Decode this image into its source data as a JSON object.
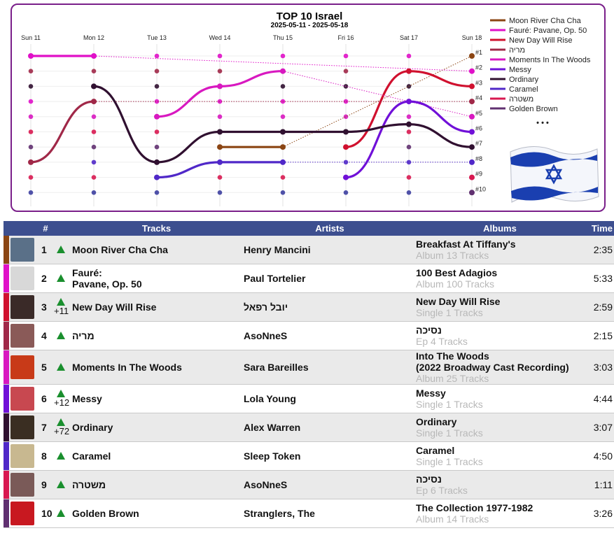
{
  "chart_data": {
    "type": "line",
    "title": "TOP 10 Israel",
    "subtitle": "2025-05-11 - 2025-05-18",
    "x": [
      "Sun 11",
      "Mon 12",
      "Tue 13",
      "Wed 14",
      "Thu 15",
      "Fri 16",
      "Sat 17",
      "Sun 18"
    ],
    "y_tick_labels": [
      "#1",
      "#2",
      "#3",
      "#4",
      "#5",
      "#6",
      "#7",
      "#8",
      "#9",
      "#10"
    ],
    "ylim": [
      1,
      10
    ],
    "y_inverted": true,
    "grid": true,
    "legend_position": "right",
    "legend_more": "• • •",
    "series": [
      {
        "name": "Moon River Cha Cha",
        "color": "#8b4513",
        "values": [
          null,
          null,
          null,
          7,
          7,
          null,
          null,
          1
        ]
      },
      {
        "name": "Fauré: Pavane, Op. 50",
        "color": "#e010c8",
        "values": [
          1,
          1,
          null,
          null,
          null,
          null,
          null,
          2
        ]
      },
      {
        "name": "New Day Will Rise",
        "color": "#d0102e",
        "values": [
          null,
          null,
          null,
          null,
          null,
          7,
          2,
          3
        ]
      },
      {
        "name": "מריה",
        "color": "#a02848",
        "values": [
          8,
          4,
          null,
          null,
          null,
          null,
          null,
          4
        ]
      },
      {
        "name": "Moments In The Woods",
        "color": "#d818c0",
        "values": [
          null,
          null,
          5,
          3,
          2,
          null,
          null,
          5
        ]
      },
      {
        "name": "Messy",
        "color": "#7010d8",
        "values": [
          null,
          null,
          null,
          null,
          null,
          9,
          4,
          6
        ]
      },
      {
        "name": "Ordinary",
        "color": "#301030",
        "values": [
          null,
          3,
          8,
          6,
          6,
          6,
          5.5,
          7
        ]
      },
      {
        "name": "Caramel",
        "color": "#5028c8",
        "values": [
          null,
          null,
          9,
          8,
          8,
          null,
          null,
          8
        ]
      },
      {
        "name": "משטרה",
        "color": "#d81850",
        "values": [
          null,
          null,
          null,
          null,
          null,
          null,
          null,
          9
        ]
      },
      {
        "name": "Golden Brown",
        "color": "#603070",
        "values": [
          null,
          null,
          null,
          null,
          null,
          null,
          null,
          10
        ]
      }
    ]
  },
  "table": {
    "headers": {
      "num": "#",
      "tracks": "Tracks",
      "artists": "Artists",
      "albums": "Albums",
      "time": "Time"
    },
    "rows": [
      {
        "rank": "1",
        "delta": "",
        "track": "Moon River Cha Cha",
        "artist": "Henry Mancini",
        "album": "Breakfast At Tiffany's",
        "album_sub": "Album 13 Tracks",
        "time": "2:35",
        "strip": "#8b4513",
        "cover": "#5a7088"
      },
      {
        "rank": "2",
        "delta": "",
        "track": "Fauré:\nPavane, Op. 50",
        "artist": "Paul Tortelier",
        "album": "100 Best Adagios",
        "album_sub": "Album 100 Tracks",
        "time": "5:33",
        "strip": "#e010c8",
        "cover": "#d8d8d8"
      },
      {
        "rank": "3",
        "delta": "+11",
        "track": "New Day Will Rise",
        "artist": "יובל רפאל",
        "album": "New Day Will Rise",
        "album_sub": "Single 1 Tracks",
        "time": "2:59",
        "strip": "#d0102e",
        "cover": "#3a2a28"
      },
      {
        "rank": "4",
        "delta": "",
        "track": "מריה",
        "artist": "AsoNneS",
        "album": "נסיכה",
        "album_sub": "Ep 4 Tracks",
        "time": "2:15",
        "strip": "#a02848",
        "cover": "#8a5a58"
      },
      {
        "rank": "5",
        "delta": "",
        "track": "Moments In The Woods",
        "artist": "Sara Bareilles",
        "album": "Into The Woods\n(2022 Broadway Cast Recording)",
        "album_sub": "Album 25 Tracks",
        "time": "3:03",
        "strip": "#d818c0",
        "cover": "#c83a18"
      },
      {
        "rank": "6",
        "delta": "+12",
        "track": "Messy",
        "artist": "Lola Young",
        "album": "Messy",
        "album_sub": "Single 1 Tracks",
        "time": "4:44",
        "strip": "#7010d8",
        "cover": "#c84850"
      },
      {
        "rank": "7",
        "delta": "+72",
        "track": "Ordinary",
        "artist": "Alex Warren",
        "album": "Ordinary",
        "album_sub": "Single 1 Tracks",
        "time": "3:07",
        "strip": "#301030",
        "cover": "#3a2e22"
      },
      {
        "rank": "8",
        "delta": "",
        "track": "Caramel",
        "artist": "Sleep Token",
        "album": "Caramel",
        "album_sub": "Single 1 Tracks",
        "time": "4:50",
        "strip": "#5028c8",
        "cover": "#c8b890"
      },
      {
        "rank": "9",
        "delta": "",
        "track": "משטרה",
        "artist": "AsoNneS",
        "album": "נסיכה",
        "album_sub": "Ep 6 Tracks",
        "time": "1:11",
        "strip": "#d81850",
        "cover": "#7a5a58"
      },
      {
        "rank": "10",
        "delta": "",
        "track": "Golden Brown",
        "artist": "Stranglers, The",
        "album": "The Collection 1977-1982",
        "album_sub": "Album 14 Tracks",
        "time": "3:26",
        "strip": "#603070",
        "cover": "#c81820"
      }
    ]
  }
}
